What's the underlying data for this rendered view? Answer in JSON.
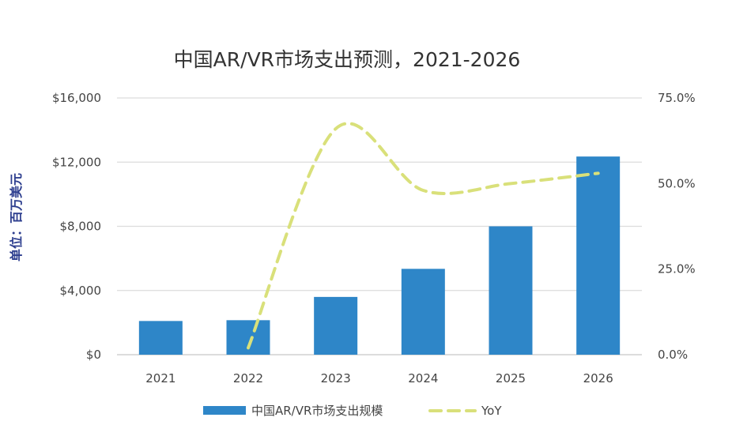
{
  "chart_data": {
    "type": "bar",
    "title": "中国AR/VR市场支出预测，2021-2026",
    "ylabel": "单位：百万美元",
    "categories": [
      "2021",
      "2022",
      "2023",
      "2024",
      "2025",
      "2026"
    ],
    "y_ticks": [
      "$16,000",
      "$12,000",
      "$8,000",
      "$4,000",
      "$0"
    ],
    "y2_ticks": [
      "75.0%",
      "50.0%",
      "25.0%",
      "0.0%"
    ],
    "ylim": [
      0,
      16000
    ],
    "y2lim": [
      0,
      75
    ],
    "grid": true,
    "legend_position": "bottom",
    "series": [
      {
        "name": "中国AR/VR市场支出规模",
        "type": "bar",
        "axis": "left",
        "color": "#2e86c8",
        "values": [
          2100,
          2150,
          3600,
          5350,
          8000,
          12350
        ]
      },
      {
        "name": "YoY",
        "type": "line",
        "axis": "right",
        "color": "#d9e07a",
        "dashed": true,
        "smooth": true,
        "values": [
          null,
          2,
          66,
          48,
          50,
          53
        ]
      }
    ]
  }
}
